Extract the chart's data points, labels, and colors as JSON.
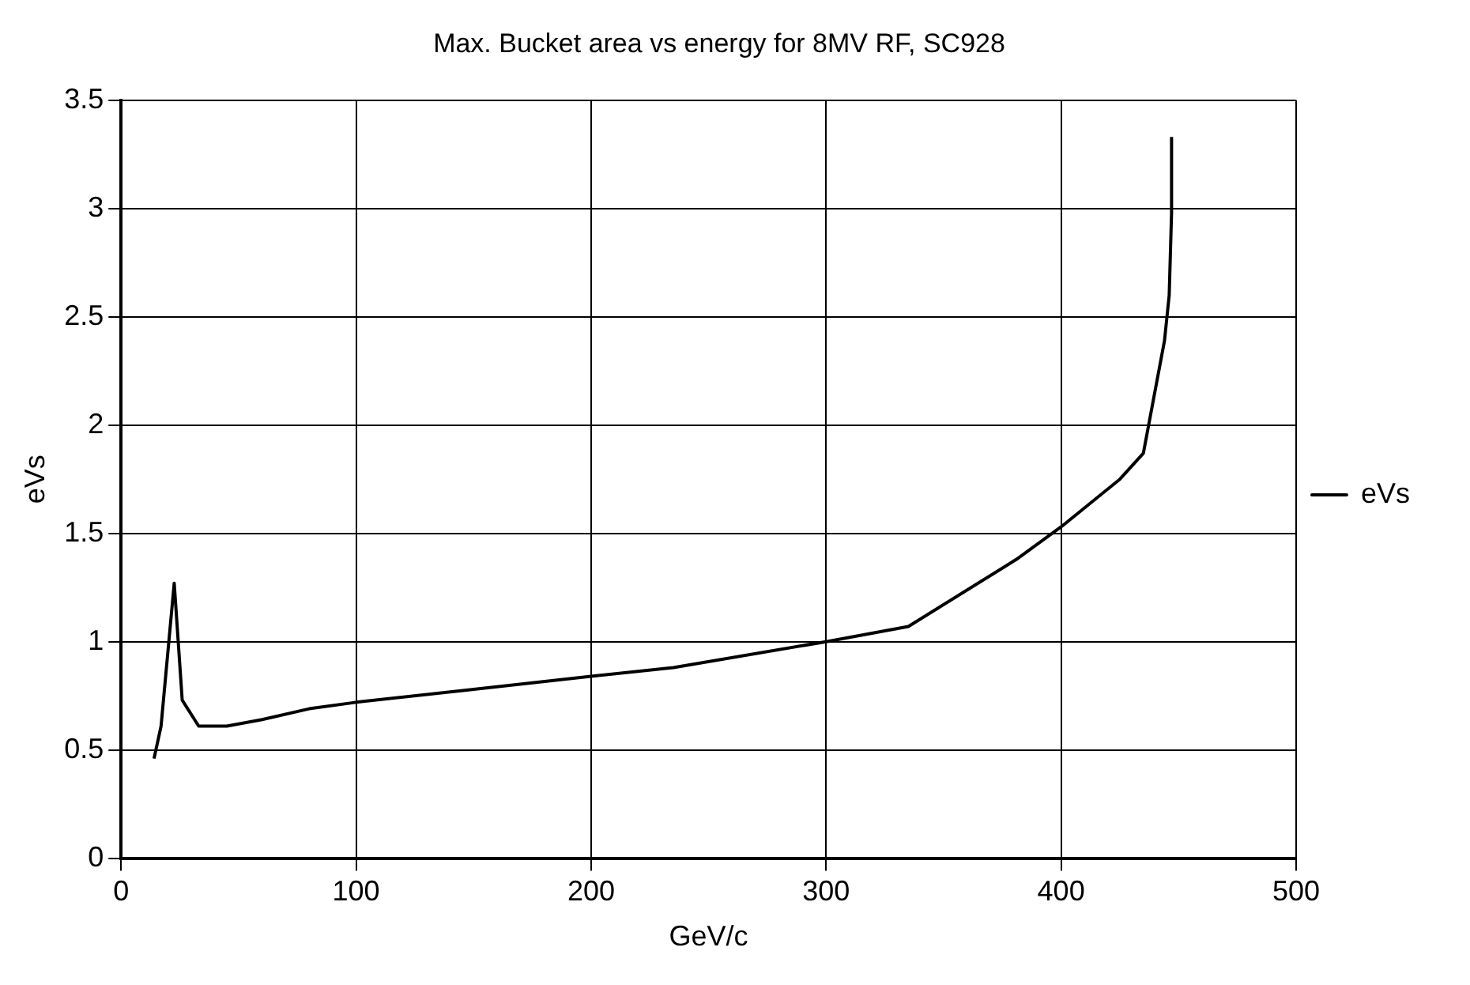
{
  "chart_data": {
    "type": "line",
    "title": "Max. Bucket area vs energy for 8MV RF, SC928",
    "xlabel": "GeV/c",
    "ylabel": "eVs",
    "series": [
      {
        "name": "eVs",
        "color": "#000000",
        "x": [
          14,
          17,
          22.6,
          26,
          33,
          45,
          60,
          80,
          100,
          150,
          200,
          235,
          300,
          335,
          381,
          400,
          425,
          435,
          444,
          446,
          447,
          447
        ],
        "values": [
          0.46,
          0.61,
          1.27,
          0.73,
          0.61,
          0.61,
          0.64,
          0.69,
          0.72,
          0.78,
          0.84,
          0.88,
          1.0,
          1.07,
          1.38,
          1.53,
          1.75,
          1.87,
          2.39,
          2.6,
          2.98,
          3.33
        ]
      }
    ],
    "xlim": [
      0,
      500
    ],
    "xticks": [
      0,
      100,
      200,
      300,
      400,
      500
    ],
    "ylim": [
      0,
      3.5
    ],
    "yticks": [
      0,
      0.5,
      1,
      1.5,
      2,
      2.5,
      3,
      3.5
    ],
    "grid": true,
    "legend": "right",
    "marker": "none",
    "line_style": "solid"
  }
}
